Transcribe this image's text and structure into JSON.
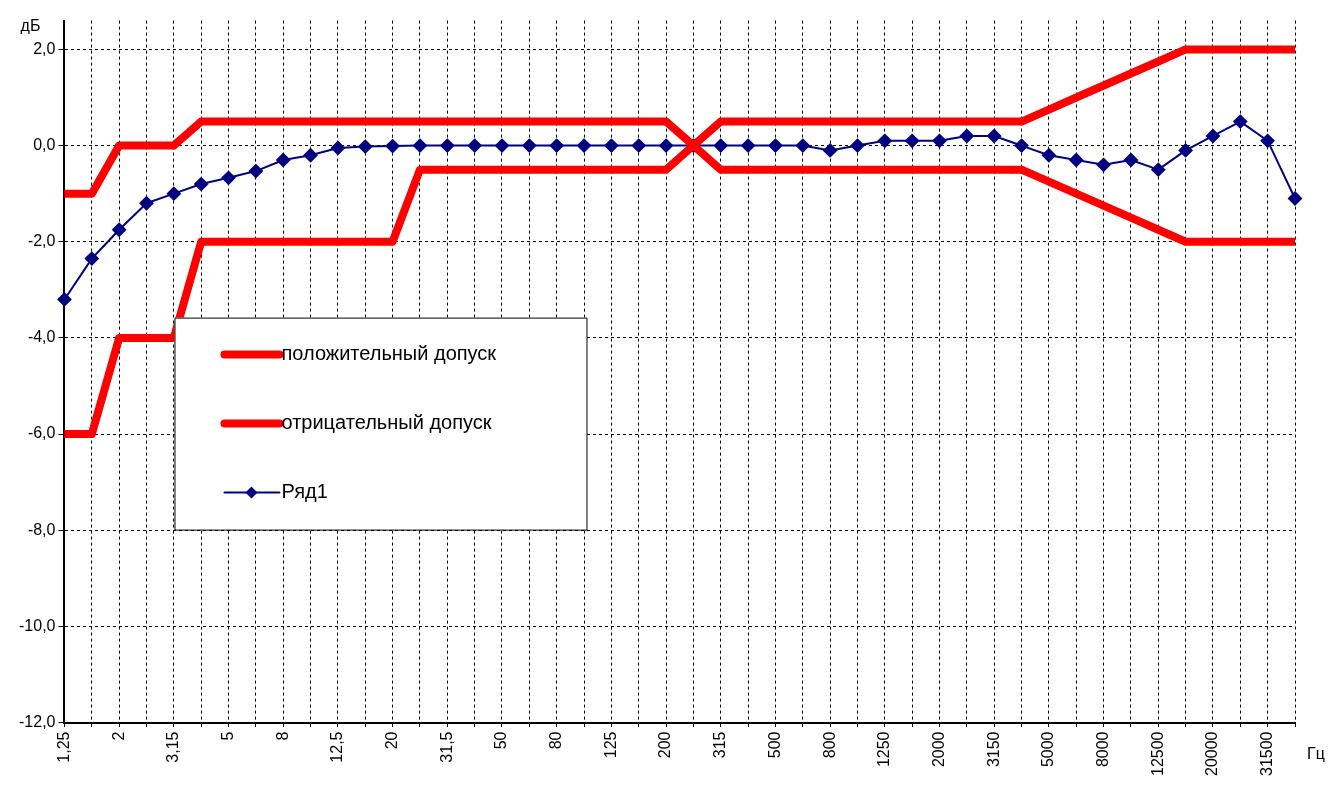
{
  "chart_data": {
    "type": "line",
    "xlabel": "Гц",
    "ylabel": "дБ",
    "categories": [
      "1,25",
      null,
      "2",
      null,
      "3,15",
      null,
      "5",
      null,
      "8",
      null,
      "12,5",
      null,
      "20",
      null,
      "31,5",
      null,
      "50",
      null,
      "80",
      null,
      "125",
      null,
      "200",
      null,
      "315",
      null,
      "500",
      null,
      "800",
      null,
      "1250",
      null,
      "2000",
      null,
      "3150",
      null,
      "5000",
      null,
      "8000",
      null,
      "12500",
      null,
      "20000",
      null,
      "31500",
      null
    ],
    "series": [
      {
        "name": "положительный допуск",
        "color": "#ff0000",
        "marker": "none",
        "values": [
          -1,
          -1,
          0,
          0,
          0,
          0.5,
          0.5,
          0.5,
          0.5,
          0.5,
          0.5,
          0.5,
          0.5,
          0.5,
          0.5,
          0.5,
          0.5,
          0.5,
          0.5,
          0.5,
          0.5,
          0.5,
          0.5,
          0,
          0.5,
          0.5,
          0.5,
          0.5,
          0.5,
          0.5,
          0.5,
          0.5,
          0.5,
          0.5,
          0.5,
          0.5,
          0.75,
          1,
          1.25,
          1.5,
          1.75,
          2,
          2,
          2,
          2,
          2
        ]
      },
      {
        "name": "отрицательный допуск",
        "color": "#ff0000",
        "marker": "none",
        "values": [
          -6,
          -6,
          -4,
          -4,
          -4,
          -2,
          -2,
          -2,
          -2,
          -2,
          -2,
          -2,
          -2,
          -0.5,
          -0.5,
          -0.5,
          -0.5,
          -0.5,
          -0.5,
          -0.5,
          -0.5,
          -0.5,
          -0.5,
          0,
          -0.5,
          -0.5,
          -0.5,
          -0.5,
          -0.5,
          -0.5,
          -0.5,
          -0.5,
          -0.5,
          -0.5,
          -0.5,
          -0.5,
          -0.75,
          -1,
          -1.25,
          -1.5,
          -1.75,
          -2,
          -2,
          -2,
          -2,
          -2
        ]
      },
      {
        "name": "Ряд1",
        "color": "#000080",
        "marker": "diamond",
        "values": [
          -3.2,
          -2.35,
          -1.75,
          -1.2,
          -1.0,
          -0.8,
          -0.67,
          -0.53,
          -0.3,
          -0.2,
          -0.05,
          -0.02,
          -0.01,
          0,
          0,
          0,
          0,
          0,
          0,
          0,
          0,
          0,
          0,
          0,
          0,
          0,
          0,
          0,
          -0.1,
          0,
          0.1,
          0.1,
          0.1,
          0.2,
          0.2,
          0,
          -0.2,
          -0.3,
          -0.4,
          -0.3,
          -0.5,
          -0.1,
          0.2,
          0.5,
          0.1,
          -1.1
        ]
      }
    ],
    "ylim": [
      -12,
      2.6
    ],
    "yticks": [
      {
        "value": -12,
        "label": "-12,0"
      },
      {
        "value": -10,
        "label": "-10,0"
      },
      {
        "value": -8,
        "label": "-8,0"
      },
      {
        "value": -6,
        "label": "-6,0"
      },
      {
        "value": -4,
        "label": "-4,0"
      },
      {
        "value": -2,
        "label": "-2,0"
      },
      {
        "value": 0,
        "label": "0,0"
      },
      {
        "value": 2,
        "label": "2,0"
      }
    ],
    "grid": true,
    "legend": "left"
  }
}
